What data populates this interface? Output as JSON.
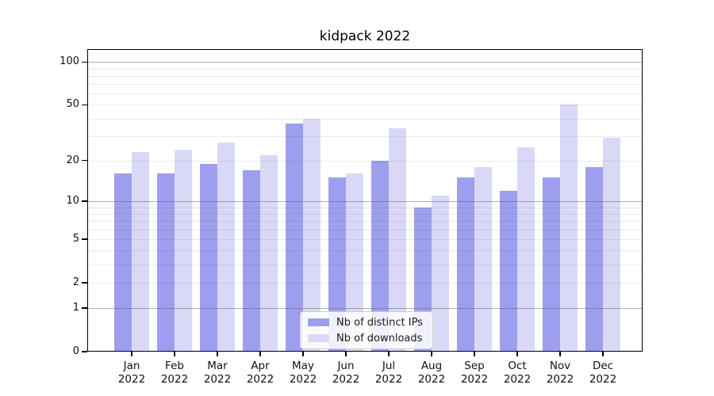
{
  "chart_data": {
    "type": "bar",
    "title": "kidpack 2022",
    "categories": [
      "Jan",
      "Feb",
      "Mar",
      "Apr",
      "May",
      "Jun",
      "Jul",
      "Aug",
      "Sep",
      "Oct",
      "Nov",
      "Dec"
    ],
    "year": "2022",
    "series": [
      {
        "name": "Nb of distinct IPs",
        "color": "#9e9eef",
        "values": [
          16,
          16,
          19,
          17,
          37,
          15,
          20,
          9,
          15,
          12,
          15,
          18
        ]
      },
      {
        "name": "Nb of downloads",
        "color": "#d9d9f7",
        "values": [
          23,
          24,
          27,
          22,
          40,
          16,
          34,
          11,
          18,
          25,
          50,
          29
        ]
      }
    ],
    "xlabel": "",
    "ylabel": "",
    "yscale": "log1p",
    "ylim": [
      0,
      123
    ],
    "yticks": [
      0,
      1,
      2,
      5,
      10,
      20,
      50,
      100
    ],
    "grid": {
      "strong": [
        1,
        10,
        100
      ],
      "light": [
        2,
        3,
        4,
        5,
        6,
        7,
        8,
        9,
        20,
        30,
        40,
        50,
        60,
        70,
        80,
        90
      ]
    },
    "legend_position": "lower center",
    "background": "#ffffff"
  }
}
